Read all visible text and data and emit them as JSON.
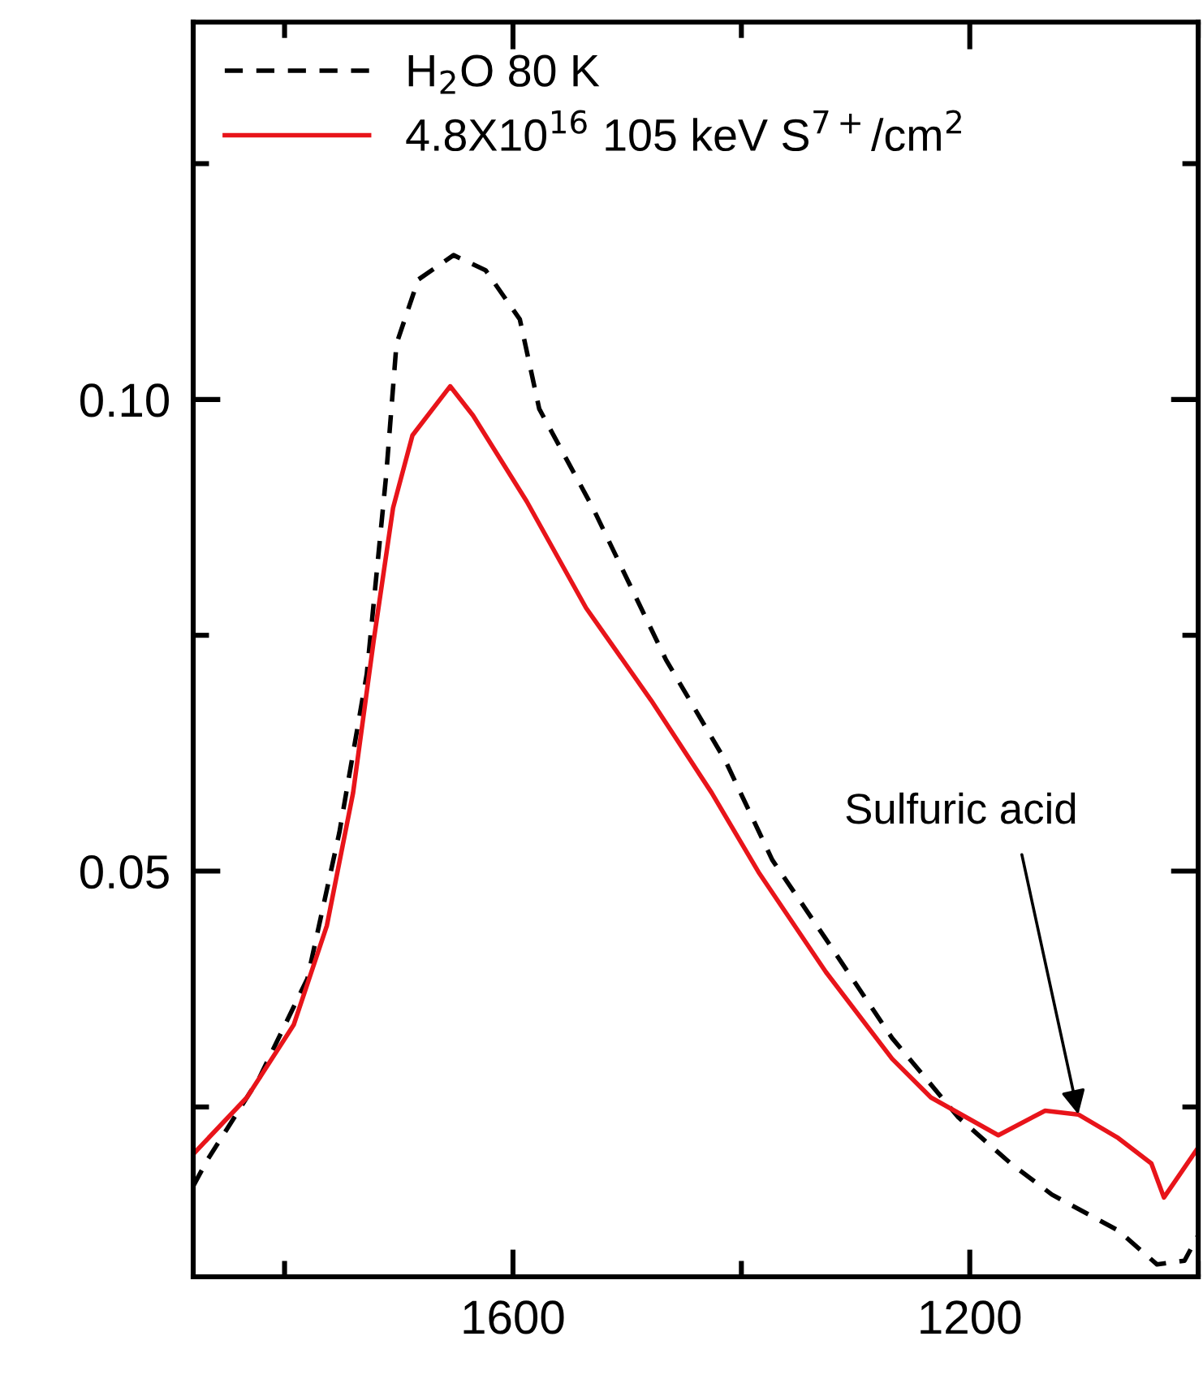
{
  "chart_data": {
    "type": "line",
    "xlim": [
      1880,
      1000
    ],
    "ylim": [
      0.007,
      0.14
    ],
    "xticks": [
      {
        "value": 1800,
        "label": null
      },
      1600,
      {
        "value": 1400,
        "label": null
      },
      1200,
      {
        "value": 1000,
        "label": null
      }
    ],
    "yticks": [
      {
        "value": 0.025,
        "label": null
      },
      {
        "value": 0.05,
        "label": "0.05"
      },
      {
        "value": 0.075,
        "label": null
      },
      {
        "value": 0.1,
        "label": "0.10"
      },
      {
        "value": 0.125,
        "label": null
      }
    ],
    "tick_labels": "xy",
    "grid": false,
    "legend": "top left",
    "marker": "none",
    "annotations": [
      {
        "text": "Sulfuric acid",
        "x": 1105,
        "y": 0.0242
      }
    ],
    "series": [
      {
        "name": "H$_{2}$O 80 K",
        "color": "#000000",
        "line_style": "dashed",
        "x": [
          1880,
          1868,
          1822,
          1780,
          1752,
          1728,
          1711,
          1702,
          1683,
          1652,
          1624,
          1594,
          1577,
          1530,
          1466,
          1414,
          1373,
          1326,
          1268,
          1210,
          1164,
          1128,
          1070,
          1036,
          1012,
          1000
        ],
        "values": [
          0.0166,
          0.0193,
          0.0281,
          0.0386,
          0.0541,
          0.0709,
          0.092,
          0.1059,
          0.1127,
          0.1153,
          0.1137,
          0.1085,
          0.099,
          0.0885,
          0.0724,
          0.0617,
          0.0512,
          0.0428,
          0.0323,
          0.0239,
          0.019,
          0.0157,
          0.0119,
          0.0083,
          0.0087,
          0.0114
        ]
      },
      {
        "name": "4.8X10$^{16}$ 105 keV S$^{7+}$/cm$^{2}$",
        "color": "#e8141a",
        "line_style": "solid",
        "x": [
          1880,
          1833,
          1792,
          1763,
          1740,
          1722,
          1705,
          1688,
          1655,
          1635,
          1588,
          1536,
          1479,
          1426,
          1385,
          1326,
          1268,
          1234,
          1175,
          1134,
          1105,
          1070,
          1041,
          1030,
          1000
        ],
        "values": [
          0.02,
          0.026,
          0.0337,
          0.0442,
          0.0583,
          0.0744,
          0.0885,
          0.0962,
          0.1014,
          0.0983,
          0.0892,
          0.0779,
          0.0681,
          0.0583,
          0.0499,
          0.0393,
          0.0301,
          0.026,
          0.022,
          0.0246,
          0.0242,
          0.0217,
          0.019,
          0.0154,
          0.0207
        ]
      }
    ]
  }
}
